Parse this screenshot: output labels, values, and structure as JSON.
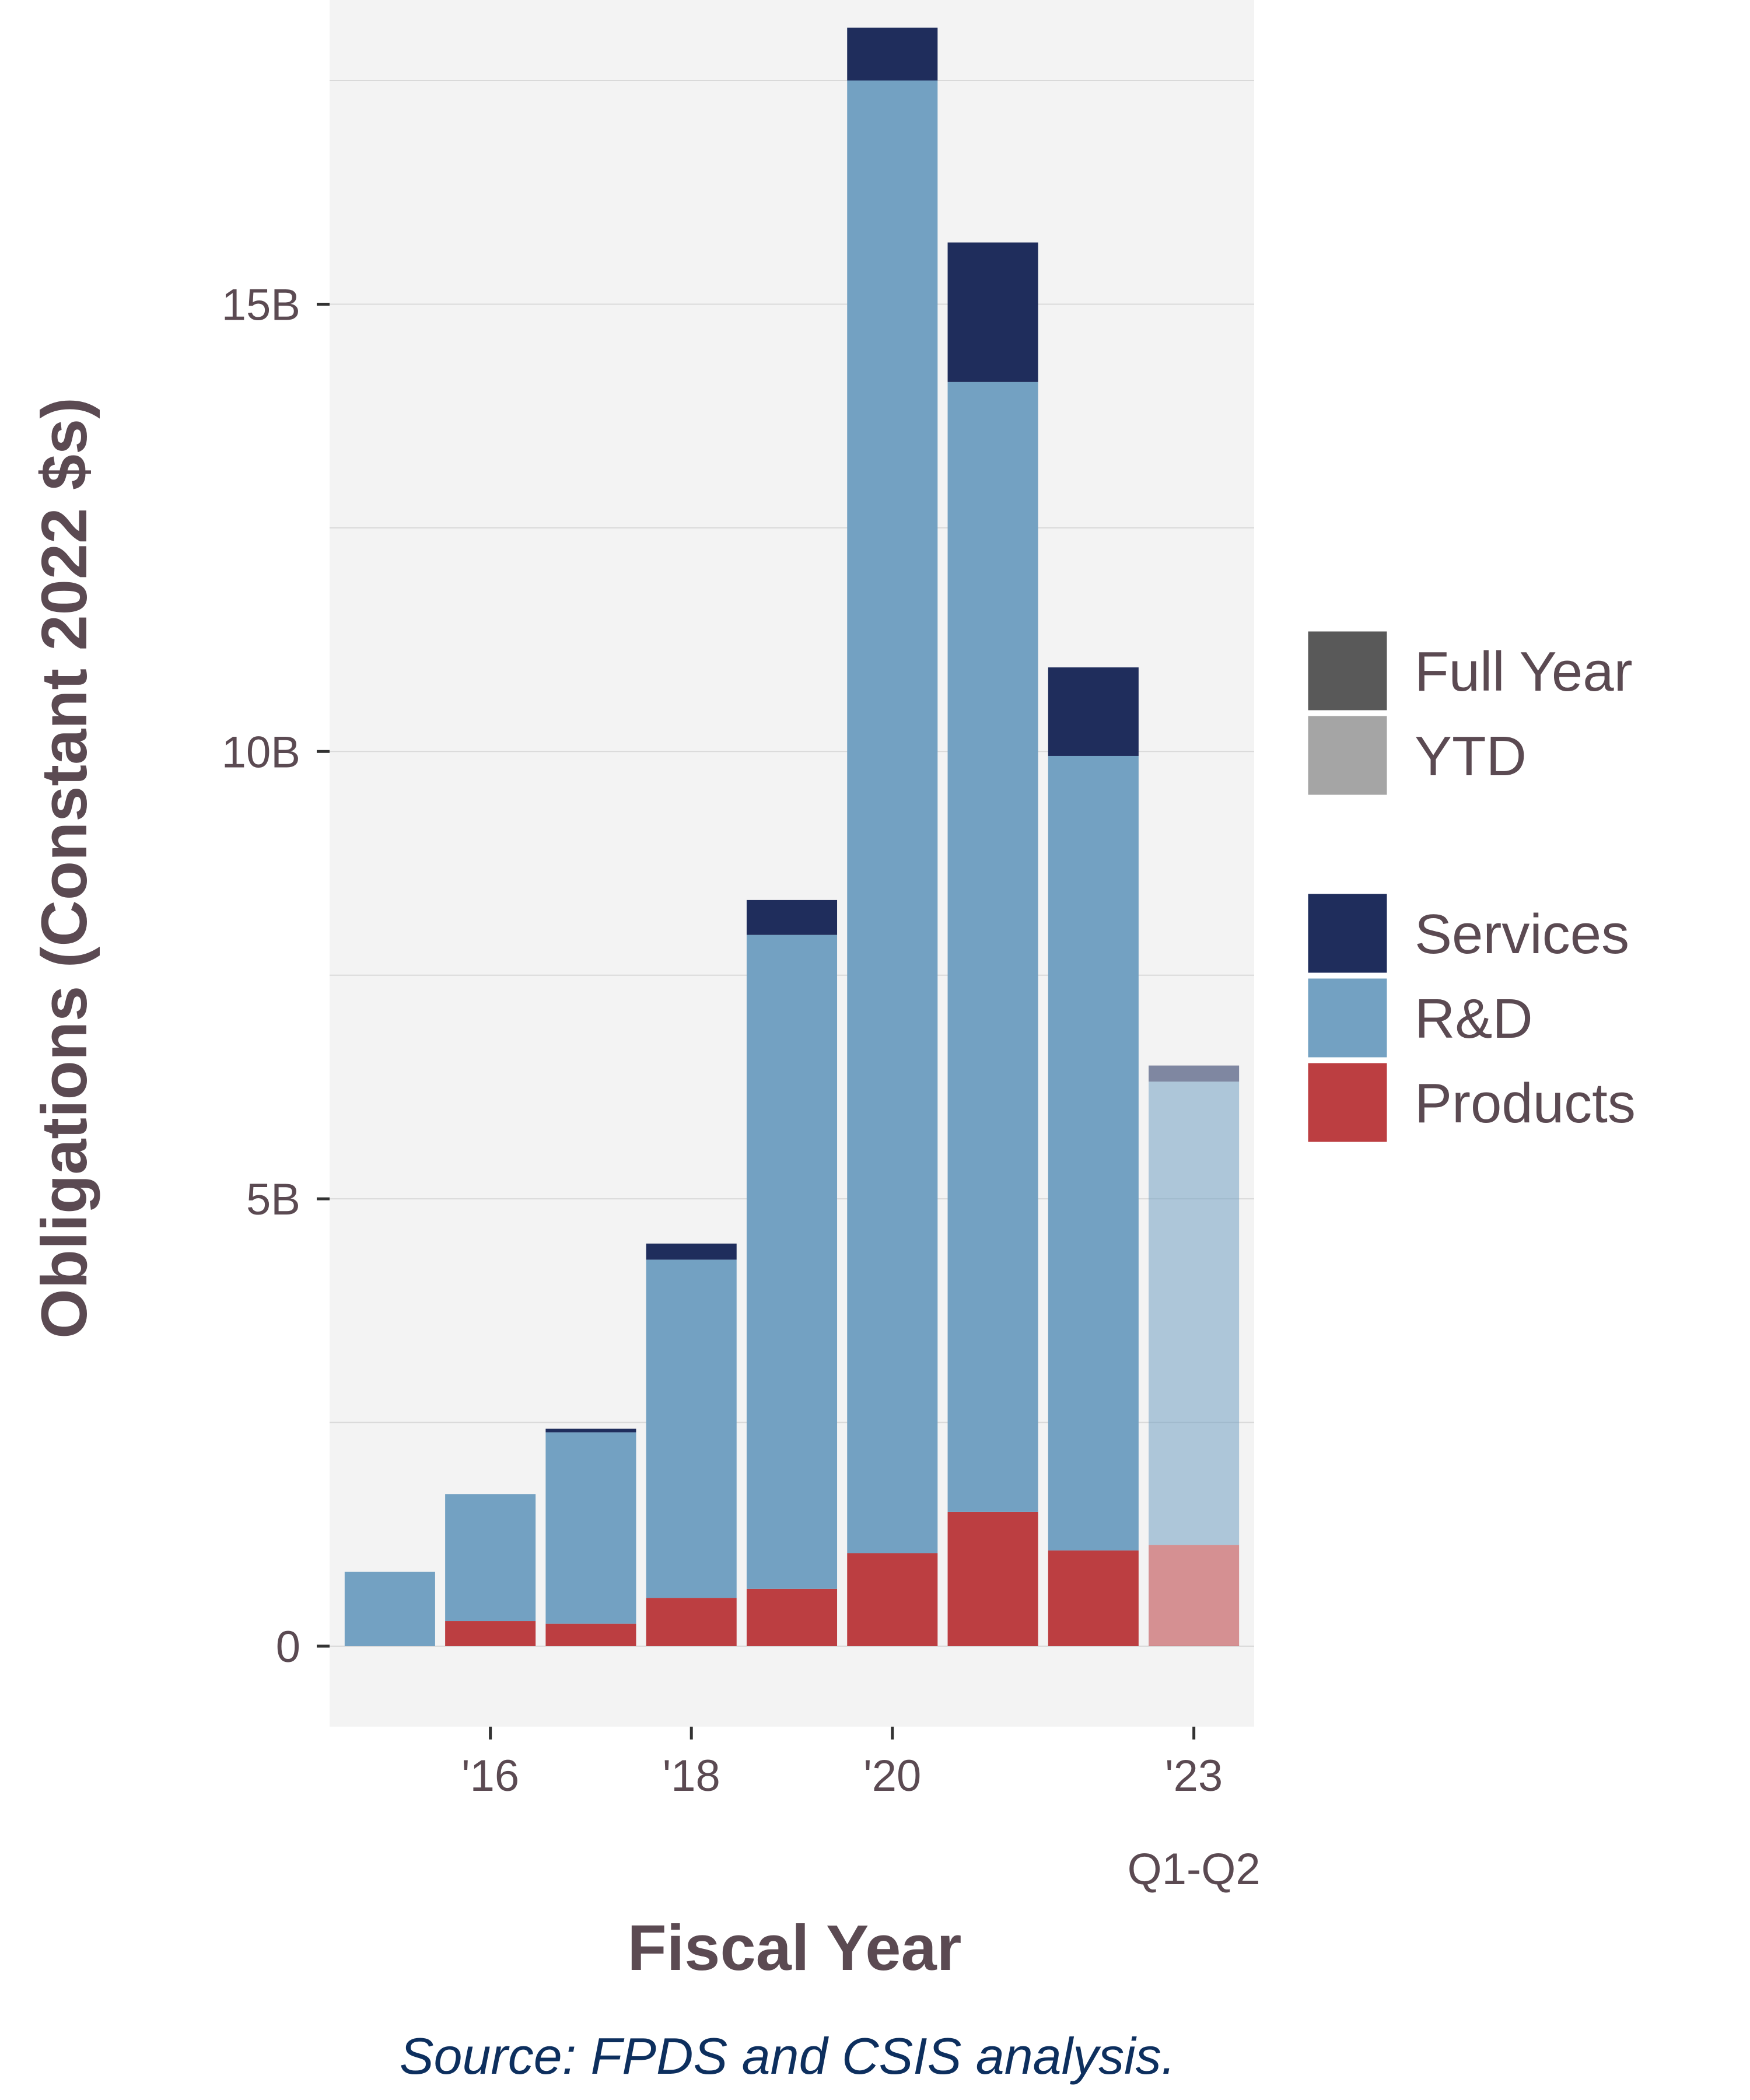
{
  "chart_data": {
    "type": "bar",
    "stacked": true,
    "x": [
      "2015",
      "2016",
      "2017",
      "2018",
      "2019",
      "2020",
      "2021",
      "2022",
      "2023"
    ],
    "x_tick_labels": [
      {
        "x": "2016",
        "label": "'16"
      },
      {
        "x": "2018",
        "label": "'18"
      },
      {
        "x": "2020",
        "label": "'20"
      },
      {
        "x": "2023",
        "label": "'23"
      }
    ],
    "x_sublabel": {
      "x": "2023",
      "label": "Q1-Q2"
    },
    "period": [
      "Full Year",
      "Full Year",
      "Full Year",
      "Full Year",
      "Full Year",
      "Full Year",
      "Full Year",
      "Full Year",
      "YTD"
    ],
    "series": [
      {
        "name": "Products",
        "color": "#bc3e41",
        "values": [
          0.0,
          0.28,
          0.25,
          0.54,
          0.64,
          1.04,
          1.5,
          1.07,
          1.13
        ]
      },
      {
        "name": "R&D",
        "color": "#73a1c2",
        "values": [
          0.83,
          1.42,
          2.14,
          3.78,
          7.31,
          16.46,
          12.63,
          8.88,
          5.18
        ]
      },
      {
        "name": "Services",
        "color": "#1f2d5c",
        "values": [
          0.0,
          0.0,
          0.04,
          0.18,
          0.39,
          0.59,
          1.56,
          0.99,
          0.18
        ]
      }
    ],
    "ylabel": "Obligations (Constant 2022 $s)",
    "xlabel": "Fiscal Year",
    "ylim": [
      -0.9,
      18.4
    ],
    "y_ticks": [
      {
        "value": 0,
        "label": "0"
      },
      {
        "value": 5,
        "label": "5B"
      },
      {
        "value": 10,
        "label": "10B"
      },
      {
        "value": 15,
        "label": "15B"
      }
    ],
    "y_minor_gridlines": [
      2.5,
      7.5,
      12.5,
      17.5
    ],
    "grid": true,
    "legend_position": "right",
    "legend": {
      "period": [
        {
          "label": "Full Year",
          "color": "#595959"
        },
        {
          "label": "YTD",
          "color": "#a5a5a5"
        }
      ],
      "category": [
        {
          "label": "Services",
          "color": "#1f2d5c"
        },
        {
          "label": "R&D",
          "color": "#73a1c2"
        },
        {
          "label": "Products",
          "color": "#bc3e41"
        }
      ]
    },
    "source": "Source: FPDS and CSIS analysis.",
    "ytd_opacity": 0.55,
    "panel_color": "#f3f3f3",
    "gridline_color": "#d9d9d9"
  }
}
